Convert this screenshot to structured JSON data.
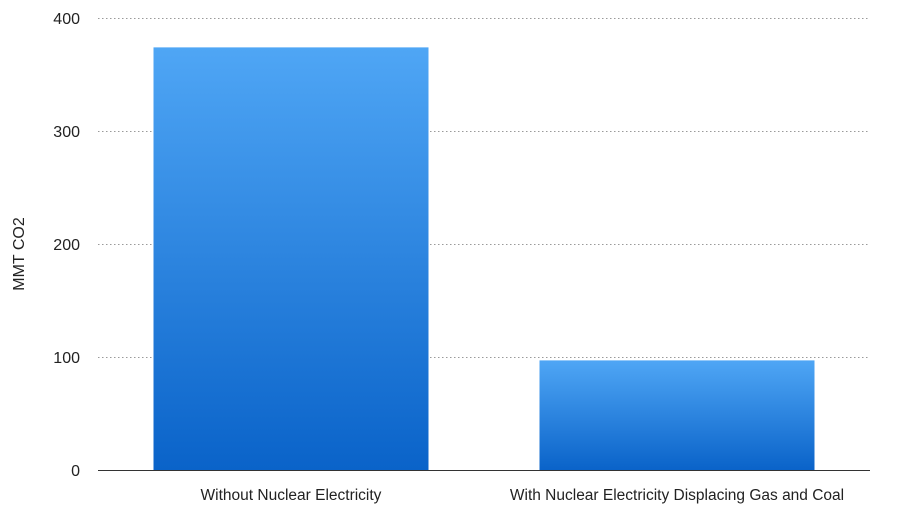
{
  "chart_data": {
    "type": "bar",
    "categories": [
      "Without Nuclear Electricity",
      "With Nuclear Electricity Displacing Gas and Coal"
    ],
    "values": [
      374,
      97
    ],
    "title": "",
    "xlabel": "",
    "ylabel": "MMT CO2",
    "ylim": [
      0,
      400
    ],
    "yticks": [
      0,
      100,
      200,
      300,
      400
    ],
    "grid": true,
    "legend": "none",
    "colors": {
      "bar_top": "#4fa6f5",
      "bar_bottom": "#0a63c9"
    }
  }
}
